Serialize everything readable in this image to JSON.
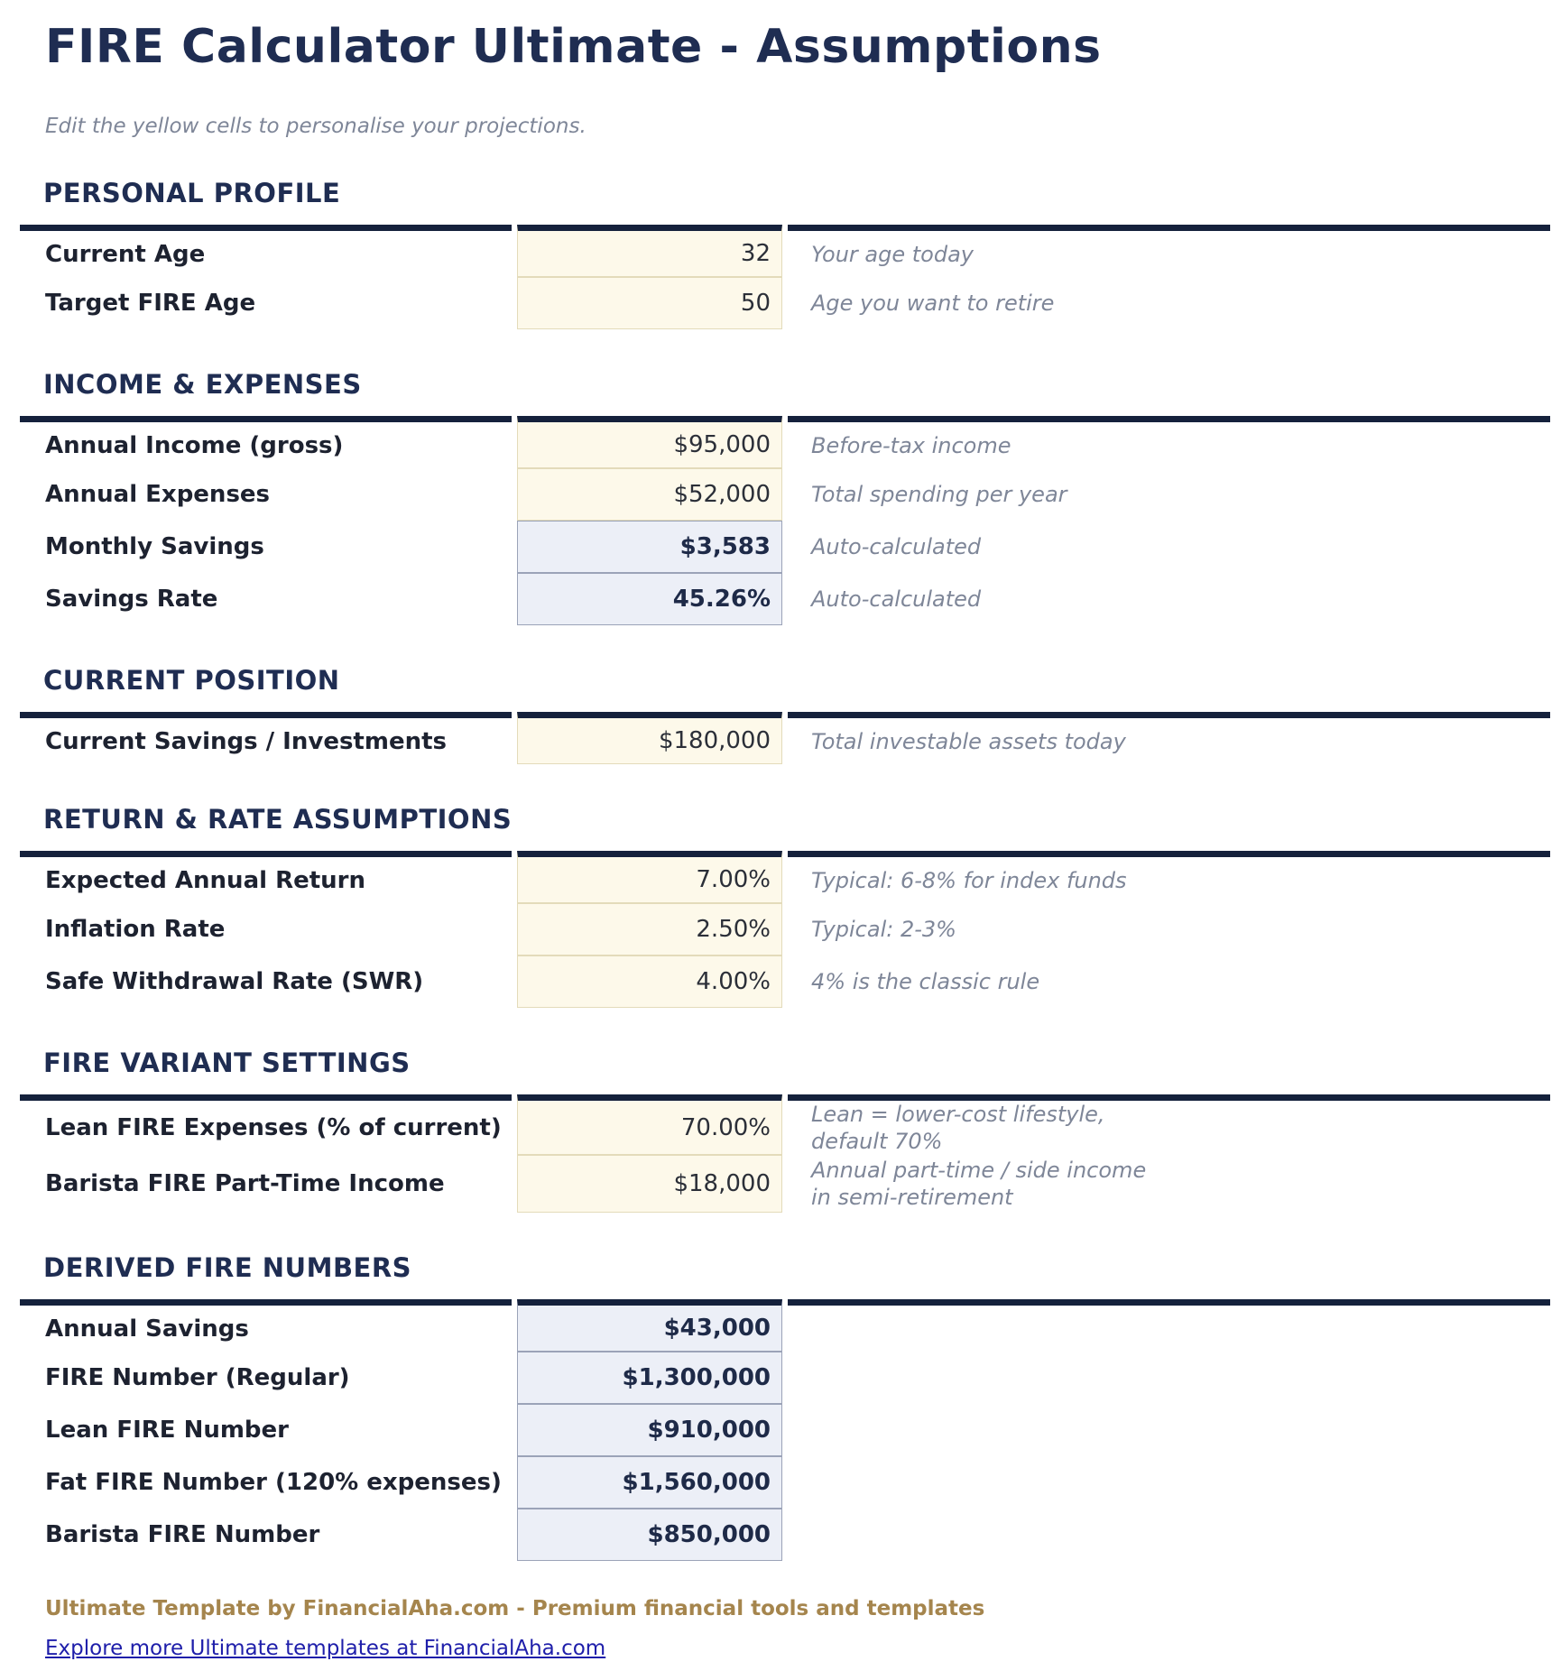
{
  "page": {
    "title": "FIRE Calculator Ultimate - Assumptions",
    "subtitle": "Edit the yellow cells to personalise your projections.",
    "footer_note": "Ultimate Template by FinancialAha.com - Premium financial tools and templates",
    "footer_link": "Explore more Ultimate templates at FinancialAha.com"
  },
  "colors": {
    "heading_navy": "#1f2d52",
    "rule_navy": "#15213c",
    "input_cell_bg": "#fdf9ea",
    "input_cell_border": "#e3dbba",
    "calc_cell_bg": "#eceff7",
    "calc_cell_border": "#9ba3b8",
    "note_gray": "#7e8698",
    "footer_tan": "#a5854d",
    "link_blue": "#1e1eaa"
  },
  "sections": [
    {
      "heading": "PERSONAL PROFILE",
      "rows": [
        {
          "label": "Current Age",
          "value": "32",
          "type": "input",
          "note": "Your age today"
        },
        {
          "label": "Target FIRE Age",
          "value": "50",
          "type": "input",
          "note": "Age you want to retire"
        }
      ]
    },
    {
      "heading": "INCOME & EXPENSES",
      "rows": [
        {
          "label": "Annual Income (gross)",
          "value": "$95,000",
          "type": "input",
          "note": "Before-tax income"
        },
        {
          "label": "Annual Expenses",
          "value": "$52,000",
          "type": "input",
          "note": "Total spending per year"
        },
        {
          "label": "Monthly Savings",
          "value": "$3,583",
          "type": "calc",
          "note": "Auto-calculated"
        },
        {
          "label": "Savings Rate",
          "value": "45.26%",
          "type": "calc",
          "note": "Auto-calculated"
        }
      ]
    },
    {
      "heading": "CURRENT POSITION",
      "rows": [
        {
          "label": "Current Savings / Investments",
          "value": "$180,000",
          "type": "input",
          "note": "Total investable assets today"
        }
      ]
    },
    {
      "heading": "RETURN & RATE ASSUMPTIONS",
      "rows": [
        {
          "label": "Expected Annual Return",
          "value": "7.00%",
          "type": "input",
          "note": "Typical: 6-8% for index funds"
        },
        {
          "label": "Inflation Rate",
          "value": "2.50%",
          "type": "input",
          "note": "Typical: 2-3%"
        },
        {
          "label": "Safe Withdrawal Rate (SWR)",
          "value": "4.00%",
          "type": "input",
          "note": "4% is the classic rule"
        }
      ]
    },
    {
      "heading": "FIRE VARIANT SETTINGS",
      "rows": [
        {
          "label": "Lean FIRE Expenses (% of current)",
          "value": "70.00%",
          "type": "input",
          "note": "Lean = lower-cost lifestyle,\ndefault 70%"
        },
        {
          "label": "Barista FIRE Part-Time Income",
          "value": "$18,000",
          "type": "input",
          "note": "Annual part-time / side income\nin semi-retirement"
        }
      ]
    },
    {
      "heading": "DERIVED FIRE NUMBERS",
      "rows": [
        {
          "label": "Annual Savings",
          "value": "$43,000",
          "type": "calc",
          "note": ""
        },
        {
          "label": "FIRE Number (Regular)",
          "value": "$1,300,000",
          "type": "calc",
          "note": ""
        },
        {
          "label": "Lean FIRE Number",
          "value": "$910,000",
          "type": "calc",
          "note": ""
        },
        {
          "label": "Fat FIRE Number (120% expenses)",
          "value": "$1,560,000",
          "type": "calc",
          "note": ""
        },
        {
          "label": "Barista FIRE Number",
          "value": "$850,000",
          "type": "calc",
          "note": ""
        }
      ]
    }
  ]
}
